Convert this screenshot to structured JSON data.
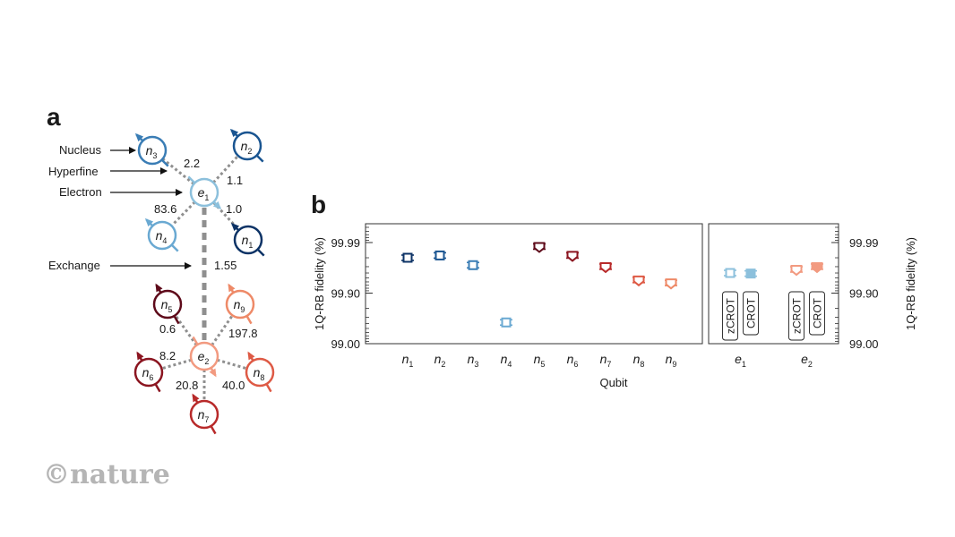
{
  "panel_a": {
    "letter": "a",
    "legend_labels": [
      {
        "key": "nucleus",
        "text": "Nucleus"
      },
      {
        "key": "hyperfine",
        "text": "Hyperfine"
      },
      {
        "key": "electron",
        "text": "Electron"
      },
      {
        "key": "exchange",
        "text": "Exchange"
      }
    ],
    "colors": {
      "e1": "#8cc0dc",
      "n1": "#0d3366",
      "n2": "#1a5591",
      "n3": "#3a7db5",
      "n4": "#6aa9d2",
      "e2": "#f29a80",
      "n5": "#5e0a1a",
      "n6": "#8b1520",
      "n7": "#b82a2a",
      "n8": "#de5a45",
      "n9": "#ee8a68",
      "link": "#8f8f8f"
    },
    "electrons": [
      {
        "id": "e1",
        "base": "e",
        "sub": "1"
      },
      {
        "id": "e2",
        "base": "e",
        "sub": "2"
      }
    ],
    "nuclei": [
      {
        "id": "n1",
        "base": "n",
        "sub": "1",
        "electron": "e1",
        "hyperfine": "1.0"
      },
      {
        "id": "n2",
        "base": "n",
        "sub": "2",
        "electron": "e1",
        "hyperfine": "1.1"
      },
      {
        "id": "n3",
        "base": "n",
        "sub": "3",
        "electron": "e1",
        "hyperfine": "2.2"
      },
      {
        "id": "n4",
        "base": "n",
        "sub": "4",
        "electron": "e1",
        "hyperfine": "83.6"
      },
      {
        "id": "n5",
        "base": "n",
        "sub": "5",
        "electron": "e2",
        "hyperfine": "0.6"
      },
      {
        "id": "n6",
        "base": "n",
        "sub": "6",
        "electron": "e2",
        "hyperfine": "8.2"
      },
      {
        "id": "n7",
        "base": "n",
        "sub": "7",
        "electron": "e2",
        "hyperfine": "20.8"
      },
      {
        "id": "n8",
        "base": "n",
        "sub": "8",
        "electron": "e2",
        "hyperfine": "40.0"
      },
      {
        "id": "n9",
        "base": "n",
        "sub": "9",
        "electron": "e2",
        "hyperfine": "197.8"
      }
    ],
    "exchange_value": "1.55"
  },
  "chart_data": {
    "type": "scatter",
    "panel_letter": "b",
    "title": "",
    "xlabel": "Qubit",
    "ylabel": "1Q-RB fidelity (%)",
    "y_scale": "log-infidelity",
    "y_ticks": [
      "99.00",
      "99.90",
      "99.99"
    ],
    "ylim": [
      99.0,
      99.995
    ],
    "grid": false,
    "groups": [
      {
        "name": "nuclei",
        "categories": [
          "n1",
          "n2",
          "n3",
          "n4",
          "n5",
          "n6",
          "n7",
          "n8",
          "n9"
        ],
        "labels": [
          {
            "base": "n",
            "sub": "1"
          },
          {
            "base": "n",
            "sub": "2"
          },
          {
            "base": "n",
            "sub": "3"
          },
          {
            "base": "n",
            "sub": "4"
          },
          {
            "base": "n",
            "sub": "5"
          },
          {
            "base": "n",
            "sub": "6"
          },
          {
            "base": "n",
            "sub": "7"
          },
          {
            "base": "n",
            "sub": "8"
          },
          {
            "base": "n",
            "sub": "9"
          }
        ],
        "values": [
          99.98,
          99.982,
          99.972,
          99.62,
          99.988,
          99.982,
          99.97,
          99.945,
          99.937
        ],
        "markers": [
          "square",
          "square",
          "square",
          "square",
          "pentagon",
          "pentagon",
          "pentagon",
          "pentagon",
          "pentagon"
        ],
        "colors": [
          "#0d3366",
          "#1a5591",
          "#3a7db5",
          "#6aa9d2",
          "#5e0a1a",
          "#8b1520",
          "#b82a2a",
          "#de5a45",
          "#ee8a68"
        ]
      },
      {
        "name": "electrons",
        "categories": [
          "e1",
          "e2"
        ],
        "labels": [
          {
            "base": "e",
            "sub": "1"
          },
          {
            "base": "e",
            "sub": "2"
          }
        ],
        "series": [
          {
            "name": "zCROT",
            "values": [
              99.96,
              99.966
            ],
            "filled": false
          },
          {
            "name": "CROT",
            "values": [
              99.959,
              99.97
            ],
            "filled": true
          }
        ],
        "markers": [
          "square",
          "pentagon"
        ],
        "colors": [
          "#8cc0dc",
          "#f29a80"
        ]
      }
    ]
  },
  "logo": {
    "text": "©nature"
  }
}
